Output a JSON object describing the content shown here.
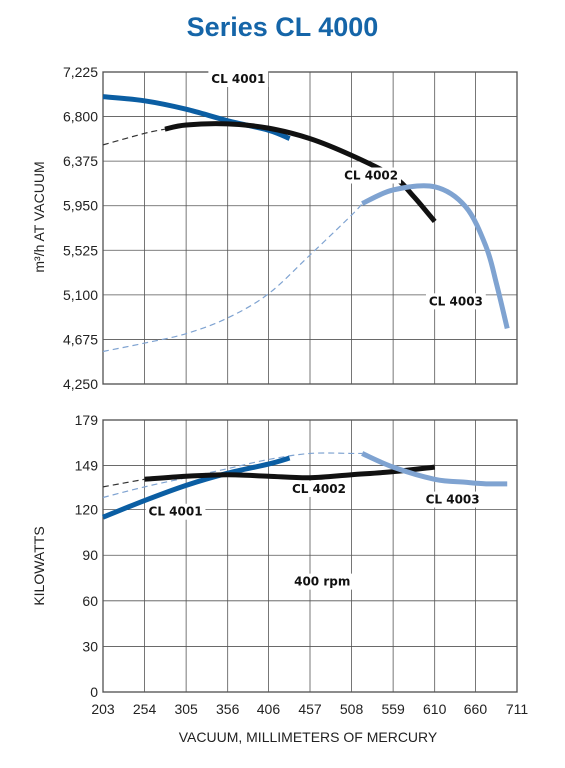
{
  "chart_data": [
    {
      "type": "line",
      "title": "Series CL 4000",
      "ylabel": "m³/h AT VACUUM",
      "xlim": [
        203,
        711
      ],
      "ylim": [
        4250,
        7225
      ],
      "yticks": [
        "4,250",
        "4,675",
        "5,100",
        "5,525",
        "5,950",
        "6,375",
        "6,800",
        "7,225"
      ],
      "ytick_values": [
        4250,
        4675,
        5100,
        5525,
        5950,
        6375,
        6800,
        7225
      ],
      "grid": true,
      "series": [
        {
          "name": "CL 4001",
          "color": "#0b5ea3",
          "dashed": false,
          "width": 5,
          "x": [
            203,
            254,
            305,
            356,
            406,
            432
          ],
          "y": [
            6990,
            6950,
            6870,
            6760,
            6670,
            6590
          ]
        },
        {
          "name": "CL 4002",
          "color": "#111111",
          "dashed": false,
          "width": 5,
          "x": [
            279,
            305,
            356,
            406,
            457,
            508,
            559,
            584,
            610
          ],
          "y": [
            6680,
            6720,
            6730,
            6690,
            6590,
            6430,
            6230,
            6040,
            5800
          ]
        },
        {
          "name": "CL 4002",
          "color": "#333333",
          "dashed": true,
          "width": 1.2,
          "x": [
            203,
            254,
            279
          ],
          "y": [
            6530,
            6640,
            6680
          ]
        },
        {
          "name": "CL 4003",
          "color": "#7fa3d1",
          "dashed": false,
          "width": 5,
          "x": [
            521,
            559,
            610,
            648,
            673,
            686,
            699
          ],
          "y": [
            5970,
            6100,
            6130,
            5940,
            5560,
            5200,
            4780
          ]
        },
        {
          "name": "CL 4003",
          "color": "#7fa3d1",
          "dashed": true,
          "width": 1.2,
          "x": [
            203,
            254,
            305,
            356,
            406,
            457,
            508,
            521
          ],
          "y": [
            4560,
            4640,
            4730,
            4880,
            5110,
            5480,
            5860,
            5970
          ]
        }
      ],
      "annotations": [
        {
          "text": "CL 4001",
          "x": 369,
          "y": 7120
        },
        {
          "text": "CL 4002",
          "x": 532,
          "y": 6200
        },
        {
          "text": "CL 4003",
          "x": 636,
          "y": 5000
        }
      ]
    },
    {
      "type": "line",
      "ylabel": "KILOWATTS",
      "xlabel": "VACUUM, MILLIMETERS OF MERCURY",
      "xticks": [
        "203",
        "254",
        "305",
        "356",
        "406",
        "457",
        "508",
        "559",
        "610",
        "660",
        "711"
      ],
      "xtick_values": [
        203,
        254,
        305,
        356,
        406,
        457,
        508,
        559,
        610,
        660,
        711
      ],
      "xlim": [
        203,
        711
      ],
      "ylim": [
        0,
        179
      ],
      "yticks": [
        "0",
        "30",
        "60",
        "90",
        "120",
        "149",
        "179"
      ],
      "ytick_values": [
        0,
        30,
        60,
        90,
        120,
        149,
        179
      ],
      "grid": true,
      "series": [
        {
          "name": "CL 4001",
          "color": "#0b5ea3",
          "dashed": false,
          "width": 5,
          "x": [
            203,
            254,
            305,
            356,
            406,
            432
          ],
          "y": [
            115,
            126,
            136,
            144,
            150,
            154
          ]
        },
        {
          "name": "CL 4002",
          "color": "#111111",
          "dashed": false,
          "width": 5,
          "x": [
            254,
            305,
            356,
            406,
            457,
            508,
            559,
            610
          ],
          "y": [
            140,
            142,
            143,
            142,
            141,
            143,
            145,
            148
          ]
        },
        {
          "name": "CL 4002",
          "color": "#333333",
          "dashed": true,
          "width": 1.2,
          "x": [
            203,
            254
          ],
          "y": [
            135,
            140
          ]
        },
        {
          "name": "CL 4003",
          "color": "#7fa3d1",
          "dashed": false,
          "width": 5,
          "x": [
            521,
            559,
            610,
            648,
            673,
            699
          ],
          "y": [
            157,
            148,
            140,
            138,
            137,
            137
          ]
        },
        {
          "name": "CL 4003",
          "color": "#7fa3d1",
          "dashed": true,
          "width": 1.2,
          "x": [
            203,
            254,
            305,
            356,
            406,
            457,
            508,
            521
          ],
          "y": [
            128,
            135,
            141,
            147,
            153,
            157,
            157,
            157
          ]
        }
      ],
      "annotations": [
        {
          "text": "CL 4001",
          "x": 292,
          "y": 116
        },
        {
          "text": "CL 4002",
          "x": 468,
          "y": 131
        },
        {
          "text": "CL 4003",
          "x": 632,
          "y": 124
        },
        {
          "text": "400 rpm",
          "x": 472,
          "y": 70
        }
      ]
    }
  ]
}
